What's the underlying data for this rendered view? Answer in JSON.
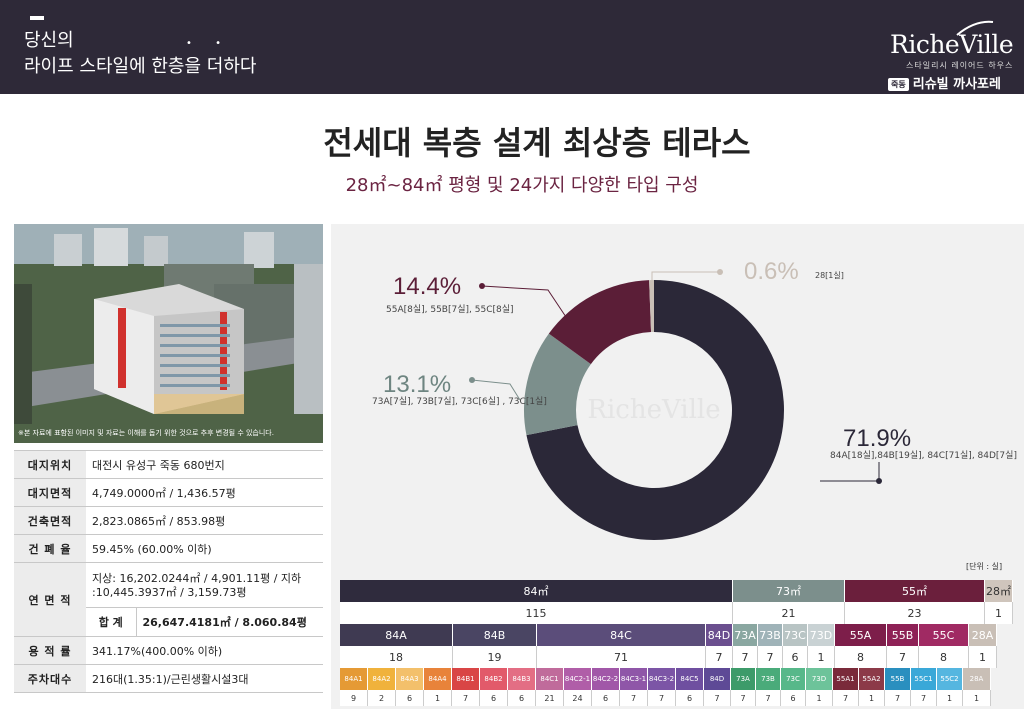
{
  "header": {
    "tagline_line1": "당신의",
    "tagline_line2": "라이프 스타일에 한층을 더하다",
    "brand_logo": "RicheVille",
    "brand_sub": "스타일리시 레이어드 하우스",
    "brand_badge": "죽동",
    "brand_name": "리슈빌 까사포레"
  },
  "headline": "전세대 복층 설계 최상층 테라스",
  "subheadline": "28㎡~84㎡ 평형 및 24가지 다양한 타입 구성",
  "photo_caption": "※본 자료에 표함된 이미지 및 자료는 이해를 돕기 위한 것으로 추후 변경될 수 있습니다.",
  "info_table": [
    {
      "label": "대지위치",
      "value": "대전시 유성구 죽동 680번지"
    },
    {
      "label": "대지면적",
      "value": "4,749.0000㎡ / 1,436.57평"
    },
    {
      "label": "건축면적",
      "value": "2,823.0865㎡ / 853.98평"
    },
    {
      "label": "건 폐 율",
      "value": "59.45% (60.00% 이하)"
    },
    {
      "label": "연 면 적",
      "value": "지상: 16,202.0244㎡ / 4,901.11평 / 지하 :10,445.3937㎡ / 3,159.73평",
      "sub_label": "합 계",
      "sub_value": "26,647.4181㎡ / 8.060.84평"
    },
    {
      "label": "용 적 률",
      "value": "341.17%(400.00% 이하)"
    },
    {
      "label": "주차대수",
      "value": "216대(1.35:1)/근린생활시설3대"
    }
  ],
  "chart_data": {
    "type": "pie",
    "center_label": "RicheVille",
    "series": [
      {
        "name": "84",
        "value": 71.9,
        "label": "71.9%",
        "detail": "84A[18실],84B[19실], 84C[71실], 84D[7실]",
        "color": "#2b2838"
      },
      {
        "name": "73",
        "value": 13.1,
        "label": "13.1%",
        "detail": "73A[7실], 73B[7실], 73C[6실] , 73C[1실]",
        "color": "#7c8f8c"
      },
      {
        "name": "55",
        "value": 14.4,
        "label": "14.4%",
        "detail": "55A[8실], 55B[7실], 55C[8실]",
        "color": "#5b1e37"
      },
      {
        "name": "28",
        "value": 0.6,
        "label": "0.6%",
        "detail": "28[1실]",
        "color": "#c9bfb6"
      }
    ]
  },
  "breakdown": {
    "unit_note": "[단위 : 실]",
    "groups": [
      {
        "label": "84㎡",
        "count": "115",
        "color": "#2f2b3d"
      },
      {
        "label": "73㎡",
        "count": "21",
        "color": "#7c8f8c"
      },
      {
        "label": "55㎡",
        "count": "23",
        "color": "#6b1f3c"
      },
      {
        "label": "28㎡",
        "count": "1",
        "color": "#cfc5bc"
      }
    ],
    "types": [
      {
        "label": "84A",
        "count": "18",
        "color": "#3f3a52"
      },
      {
        "label": "84B",
        "count": "19",
        "color": "#4a4563"
      },
      {
        "label": "84C",
        "count": "71",
        "color": "#5b4d7a"
      },
      {
        "label": "84D",
        "count": "7",
        "color": "#6b4f8f"
      },
      {
        "label": "73A",
        "count": "7",
        "color": "#8aa7a1"
      },
      {
        "label": "73B",
        "count": "7",
        "color": "#9fb3b8"
      },
      {
        "label": "73C",
        "count": "6",
        "color": "#b8c4c4"
      },
      {
        "label": "73D",
        "count": "1",
        "color": "#c9d2d4"
      },
      {
        "label": "55A",
        "count": "8",
        "color": "#7d1e4a"
      },
      {
        "label": "55B",
        "count": "7",
        "color": "#8e2156"
      },
      {
        "label": "55C",
        "count": "8",
        "color": "#a02a63"
      },
      {
        "label": "28A",
        "count": "1",
        "color": "#c9bfb6"
      }
    ],
    "subtypes": [
      {
        "label": "84A1",
        "count": "9",
        "color": "#e59a35"
      },
      {
        "label": "84A2",
        "count": "2",
        "color": "#f0b23c"
      },
      {
        "label": "84A3",
        "count": "6",
        "color": "#f3c06b"
      },
      {
        "label": "84A4",
        "count": "1",
        "color": "#e8833a"
      },
      {
        "label": "84B1",
        "count": "7",
        "color": "#d94545"
      },
      {
        "label": "84B2",
        "count": "6",
        "color": "#e25a6a"
      },
      {
        "label": "84B3",
        "count": "6",
        "color": "#e36e84"
      },
      {
        "label": "84C1",
        "count": "21",
        "color": "#c06b9b"
      },
      {
        "label": "84C2-1",
        "count": "24",
        "color": "#b05ea8"
      },
      {
        "label": "84C2-2",
        "count": "6",
        "color": "#a157a8"
      },
      {
        "label": "84C3-1",
        "count": "7",
        "color": "#8f56a8"
      },
      {
        "label": "84C3-2",
        "count": "7",
        "color": "#7c55a6"
      },
      {
        "label": "84C5",
        "count": "6",
        "color": "#6f4fa0"
      },
      {
        "label": "84D",
        "count": "7",
        "color": "#5e4a96"
      },
      {
        "label": "73A",
        "count": "7",
        "color": "#3d9b6a"
      },
      {
        "label": "73B",
        "count": "7",
        "color": "#4aab7a"
      },
      {
        "label": "73C",
        "count": "6",
        "color": "#57b88a"
      },
      {
        "label": "73D",
        "count": "1",
        "color": "#6dc39a"
      },
      {
        "label": "55A1",
        "count": "7",
        "color": "#7a2a3a"
      },
      {
        "label": "55A2",
        "count": "1",
        "color": "#8c3a48"
      },
      {
        "label": "55B",
        "count": "7",
        "color": "#2a8fbf"
      },
      {
        "label": "55C1",
        "count": "7",
        "color": "#3aa8d8"
      },
      {
        "label": "55C2",
        "count": "1",
        "color": "#55b6e0"
      },
      {
        "label": "28A",
        "count": "1",
        "color": "#c9bfb6"
      }
    ]
  }
}
